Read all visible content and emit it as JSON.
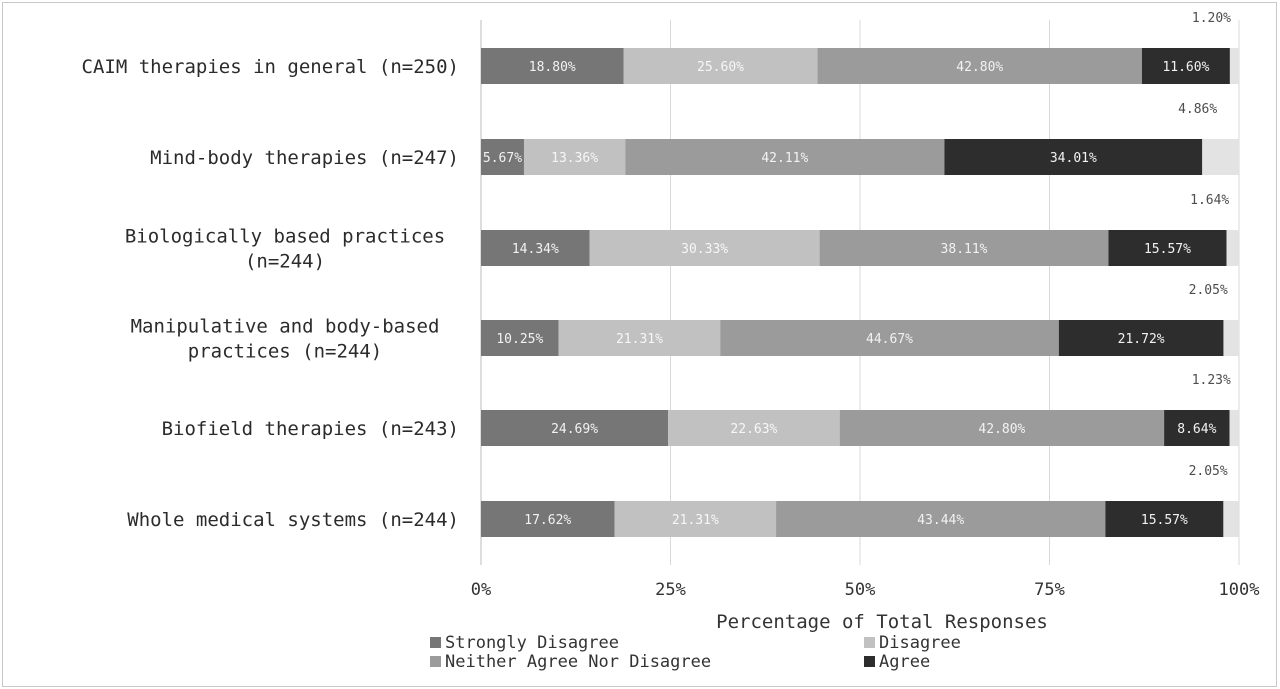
{
  "chart_data": {
    "type": "bar",
    "orientation": "horizontal",
    "stacked": true,
    "categories": [
      [
        "CAIM therapies in general (n=250)"
      ],
      [
        "Mind-body therapies (n=247)"
      ],
      [
        "Biologically based practices",
        "(n=244)"
      ],
      [
        "Manipulative and body-based",
        "practices (n=244)"
      ],
      [
        "Biofield therapies (n=243)"
      ],
      [
        "Whole medical systems (n=244)"
      ]
    ],
    "series": [
      {
        "name": "Strongly Disagree",
        "color": "#767676",
        "values": [
          18.8,
          5.67,
          14.34,
          10.25,
          24.69,
          17.62
        ]
      },
      {
        "name": "Disagree",
        "color": "#c1c1c1",
        "values": [
          25.6,
          13.36,
          30.33,
          21.31,
          22.63,
          21.31
        ]
      },
      {
        "name": "Neither Agree Nor Disagree",
        "color": "#9b9b9b",
        "values": [
          42.8,
          42.11,
          38.11,
          44.67,
          42.8,
          43.44
        ]
      },
      {
        "name": "Agree",
        "color": "#2d2d2d",
        "values": [
          11.6,
          34.01,
          15.57,
          21.72,
          8.64,
          15.57
        ]
      },
      {
        "name": "",
        "color": "#e3e3e3",
        "values": [
          1.2,
          4.86,
          1.64,
          2.05,
          1.23,
          2.05
        ]
      }
    ],
    "labels": [
      [
        "18.80%",
        "25.60%",
        "42.80%",
        "11.60%",
        "1.20%"
      ],
      [
        "5.67%",
        "13.36%",
        "42.11%",
        "34.01%",
        "4.86%"
      ],
      [
        "14.34%",
        "30.33%",
        "38.11%",
        "15.57%",
        "1.64%"
      ],
      [
        "10.25%",
        "21.31%",
        "44.67%",
        "21.72%",
        "2.05%"
      ],
      [
        "24.69%",
        "22.63%",
        "42.80%",
        "8.64%",
        "1.23%"
      ],
      [
        "17.62%",
        "21.31%",
        "43.44%",
        "15.57%",
        "2.05%"
      ]
    ],
    "xticks": [
      "0%",
      "25%",
      "50%",
      "75%",
      "100%"
    ],
    "xlim": [
      0,
      100
    ],
    "xlabel": "Percentage of Total Responses",
    "grid": "vertical",
    "legend_position": "bottom",
    "legend": [
      "Strongly Disagree",
      "Disagree",
      "Neither Agree Nor Disagree",
      "Agree"
    ]
  }
}
